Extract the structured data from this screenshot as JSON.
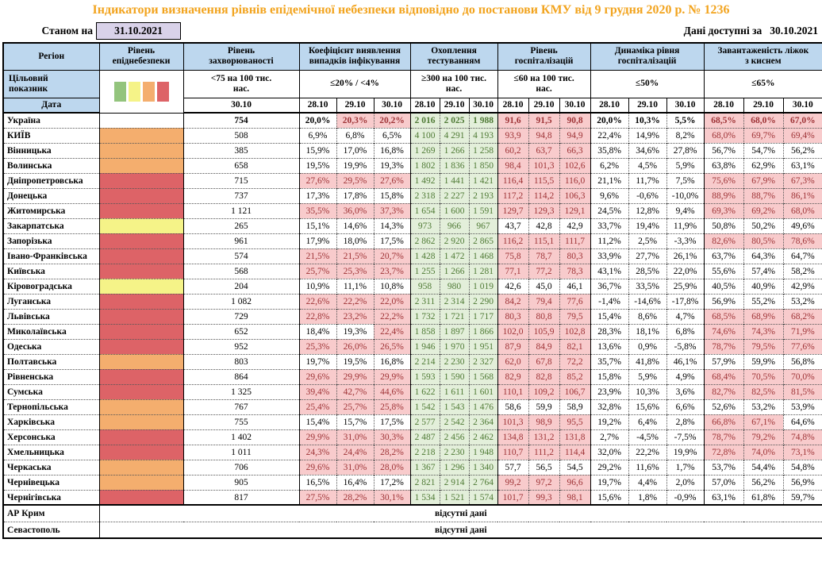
{
  "title": "Індикатори визначення рівнів епідемічної небезпеки відповідно до постанови КМУ від 9 грудня 2020 р. № 1236",
  "as_of_label": "Станом на",
  "as_of_date": "31.10.2021",
  "avail_label": "Дані доступні за",
  "avail_date": "30.10.2021",
  "colors": {
    "title_orange": "#F2A41F",
    "header_blue": "#BDD7EE",
    "asof_lavender": "#D9D2E9",
    "level_orange": "#F4AE6E",
    "level_red": "#DD6367",
    "level_yellow": "#F5F388",
    "bad_bg": "#F8CBCC",
    "bad_text": "#9E3336",
    "good_bg": "#E3EFDA",
    "good_text": "#4F7A35"
  },
  "legend_colors": [
    "#93C47D",
    "#F5F388",
    "#F4AE6E",
    "#DD6367"
  ],
  "header": {
    "region": "Регіон",
    "target_label": "Цільовий\nпоказник",
    "date_label": "Дата",
    "groups": [
      {
        "label": "Рівень\nепіднебезпеки",
        "target": "",
        "dates": []
      },
      {
        "label": "Рівень\nзахворюваності",
        "target": "<75 на 100 тис.\nнас.",
        "dates": [
          "30.10"
        ]
      },
      {
        "label": "Коефіцієнт виявлення\nвипадків інфікування",
        "target": "≤20% / <4%",
        "dates": [
          "28.10",
          "29.10",
          "30.10"
        ]
      },
      {
        "label": "Охоплення\nтестуванням",
        "target": "≥300 на 100 тис.\nнас.",
        "dates": [
          "28.10",
          "29.10",
          "30.10"
        ]
      },
      {
        "label": "Рівень\nгоспіталізацій",
        "target": "≤60 на 100 тис.\nнас.",
        "dates": [
          "28.10",
          "29.10",
          "30.10"
        ]
      },
      {
        "label": "Динаміка рівня\nгоспіталізацій",
        "target": "≤50%",
        "dates": [
          "28.10",
          "29.10",
          "30.10"
        ]
      },
      {
        "label": "Завантаженість ліжок\nз киснем",
        "target": "≤65%",
        "dates": [
          "28.10",
          "29.10",
          "30.10"
        ]
      }
    ]
  },
  "rows": [
    {
      "region": "Україна",
      "level": "none",
      "bold": true,
      "morbidity": "754",
      "coef": [
        "20,0%",
        "20,3%",
        "20,2%"
      ],
      "coef_f": "wpp",
      "test": [
        "2 016",
        "2 025",
        "1 988"
      ],
      "hosp": [
        "91,6",
        "91,5",
        "90,8"
      ],
      "hosp_f": "ppp",
      "dyn": [
        "20,0%",
        "10,3%",
        "5,5%"
      ],
      "beds": [
        "68,5%",
        "68,0%",
        "67,0%"
      ],
      "beds_f": "ppp"
    },
    {
      "region": "КИЇВ",
      "level": "orange",
      "morbidity": "508",
      "coef": [
        "6,9%",
        "6,8%",
        "6,5%"
      ],
      "coef_f": "www",
      "test": [
        "4 100",
        "4 291",
        "4 193"
      ],
      "hosp": [
        "93,9",
        "94,8",
        "94,9"
      ],
      "hosp_f": "ppp",
      "dyn": [
        "22,4%",
        "14,9%",
        "8,2%"
      ],
      "beds": [
        "68,0%",
        "69,7%",
        "69,4%"
      ],
      "beds_f": "ppp"
    },
    {
      "region": "Вінницька",
      "level": "orange",
      "morbidity": "385",
      "coef": [
        "15,9%",
        "17,0%",
        "16,8%"
      ],
      "coef_f": "www",
      "test": [
        "1 269",
        "1 266",
        "1 258"
      ],
      "hosp": [
        "60,2",
        "63,7",
        "66,3"
      ],
      "hosp_f": "ppp",
      "dyn": [
        "35,8%",
        "34,6%",
        "27,8%"
      ],
      "beds": [
        "56,7%",
        "54,7%",
        "56,2%"
      ],
      "beds_f": "www"
    },
    {
      "region": "Волинська",
      "level": "orange",
      "morbidity": "658",
      "coef": [
        "19,5%",
        "19,9%",
        "19,3%"
      ],
      "coef_f": "www",
      "test": [
        "1 802",
        "1 836",
        "1 850"
      ],
      "hosp": [
        "98,4",
        "101,3",
        "102,6"
      ],
      "hosp_f": "ppp",
      "dyn": [
        "6,2%",
        "4,5%",
        "5,9%"
      ],
      "beds": [
        "63,8%",
        "62,9%",
        "63,1%"
      ],
      "beds_f": "www"
    },
    {
      "region": "Дніпропетровська",
      "level": "red",
      "morbidity": "715",
      "coef": [
        "27,6%",
        "29,5%",
        "27,6%"
      ],
      "coef_f": "ppp",
      "test": [
        "1 492",
        "1 441",
        "1 421"
      ],
      "hosp": [
        "116,4",
        "115,5",
        "116,0"
      ],
      "hosp_f": "ppp",
      "dyn": [
        "21,1%",
        "11,7%",
        "7,5%"
      ],
      "beds": [
        "75,6%",
        "67,9%",
        "67,3%"
      ],
      "beds_f": "ppp"
    },
    {
      "region": "Донецька",
      "level": "red",
      "morbidity": "737",
      "coef": [
        "17,3%",
        "17,8%",
        "15,8%"
      ],
      "coef_f": "www",
      "test": [
        "2 318",
        "2 227",
        "2 193"
      ],
      "hosp": [
        "117,2",
        "114,2",
        "106,3"
      ],
      "hosp_f": "ppp",
      "dyn": [
        "9,6%",
        "-0,6%",
        "-10,0%"
      ],
      "beds": [
        "88,9%",
        "88,7%",
        "86,1%"
      ],
      "beds_f": "ppp"
    },
    {
      "region": "Житомирська",
      "level": "red",
      "morbidity": "1 121",
      "coef": [
        "35,5%",
        "36,0%",
        "37,3%"
      ],
      "coef_f": "ppp",
      "test": [
        "1 654",
        "1 600",
        "1 591"
      ],
      "hosp": [
        "129,7",
        "129,3",
        "129,1"
      ],
      "hosp_f": "ppp",
      "dyn": [
        "24,5%",
        "12,8%",
        "9,4%"
      ],
      "beds": [
        "69,3%",
        "69,2%",
        "68,0%"
      ],
      "beds_f": "ppp"
    },
    {
      "region": "Закарпатська",
      "level": "yellow",
      "morbidity": "265",
      "coef": [
        "15,1%",
        "14,6%",
        "14,3%"
      ],
      "coef_f": "www",
      "test": [
        "973",
        "966",
        "967"
      ],
      "hosp": [
        "43,7",
        "42,8",
        "42,9"
      ],
      "hosp_f": "www",
      "dyn": [
        "33,7%",
        "19,4%",
        "11,9%"
      ],
      "beds": [
        "50,8%",
        "50,2%",
        "49,6%"
      ],
      "beds_f": "www"
    },
    {
      "region": "Запорізька",
      "level": "red",
      "morbidity": "961",
      "coef": [
        "17,9%",
        "18,0%",
        "17,5%"
      ],
      "coef_f": "www",
      "test": [
        "2 862",
        "2 920",
        "2 865"
      ],
      "hosp": [
        "116,2",
        "115,1",
        "111,7"
      ],
      "hosp_f": "ppp",
      "dyn": [
        "11,2%",
        "2,5%",
        "-3,3%"
      ],
      "beds": [
        "82,6%",
        "80,5%",
        "78,6%"
      ],
      "beds_f": "ppp"
    },
    {
      "region": "Івано-Франківська",
      "level": "red",
      "morbidity": "574",
      "coef": [
        "21,5%",
        "21,5%",
        "20,7%"
      ],
      "coef_f": "ppp",
      "test": [
        "1 428",
        "1 472",
        "1 468"
      ],
      "hosp": [
        "75,8",
        "78,7",
        "80,3"
      ],
      "hosp_f": "ppp",
      "dyn": [
        "33,9%",
        "27,7%",
        "26,1%"
      ],
      "beds": [
        "63,7%",
        "64,3%",
        "64,7%"
      ],
      "beds_f": "www"
    },
    {
      "region": "Київська",
      "level": "red",
      "morbidity": "568",
      "coef": [
        "25,7%",
        "25,3%",
        "23,7%"
      ],
      "coef_f": "ppp",
      "test": [
        "1 255",
        "1 266",
        "1 281"
      ],
      "hosp": [
        "77,1",
        "77,2",
        "78,3"
      ],
      "hosp_f": "ppp",
      "dyn": [
        "43,1%",
        "28,5%",
        "22,0%"
      ],
      "beds": [
        "55,6%",
        "57,4%",
        "58,2%"
      ],
      "beds_f": "www"
    },
    {
      "region": "Кіровоградська",
      "level": "yellow",
      "morbidity": "204",
      "coef": [
        "10,9%",
        "11,1%",
        "10,8%"
      ],
      "coef_f": "www",
      "test": [
        "958",
        "980",
        "1 019"
      ],
      "hosp": [
        "42,6",
        "45,0",
        "46,1"
      ],
      "hosp_f": "www",
      "dyn": [
        "36,7%",
        "33,5%",
        "25,9%"
      ],
      "beds": [
        "40,5%",
        "40,9%",
        "42,9%"
      ],
      "beds_f": "www"
    },
    {
      "region": "Луганська",
      "level": "red",
      "morbidity": "1 082",
      "coef": [
        "22,6%",
        "22,2%",
        "22,0%"
      ],
      "coef_f": "ppp",
      "test": [
        "2 311",
        "2 314",
        "2 290"
      ],
      "hosp": [
        "84,2",
        "79,4",
        "77,6"
      ],
      "hosp_f": "ppp",
      "dyn": [
        "-1,4%",
        "-14,6%",
        "-17,8%"
      ],
      "beds": [
        "56,9%",
        "55,2%",
        "53,2%"
      ],
      "beds_f": "www"
    },
    {
      "region": "Львівська",
      "level": "red",
      "morbidity": "729",
      "coef": [
        "22,8%",
        "23,2%",
        "22,2%"
      ],
      "coef_f": "ppp",
      "test": [
        "1 732",
        "1 721",
        "1 717"
      ],
      "hosp": [
        "80,3",
        "80,8",
        "79,5"
      ],
      "hosp_f": "ppp",
      "dyn": [
        "15,4%",
        "8,6%",
        "4,7%"
      ],
      "beds": [
        "68,5%",
        "68,9%",
        "68,2%"
      ],
      "beds_f": "ppp"
    },
    {
      "region": "Миколаївська",
      "level": "red",
      "morbidity": "652",
      "coef": [
        "18,4%",
        "19,3%",
        "22,4%"
      ],
      "coef_f": "wwp",
      "test": [
        "1 858",
        "1 897",
        "1 866"
      ],
      "hosp": [
        "102,0",
        "105,9",
        "102,8"
      ],
      "hosp_f": "ppp",
      "dyn": [
        "28,3%",
        "18,1%",
        "6,8%"
      ],
      "beds": [
        "74,6%",
        "74,3%",
        "71,9%"
      ],
      "beds_f": "ppp"
    },
    {
      "region": "Одеська",
      "level": "red",
      "morbidity": "952",
      "coef": [
        "25,3%",
        "26,0%",
        "26,5%"
      ],
      "coef_f": "ppp",
      "test": [
        "1 946",
        "1 970",
        "1 951"
      ],
      "hosp": [
        "87,9",
        "84,9",
        "82,1"
      ],
      "hosp_f": "ppp",
      "dyn": [
        "13,6%",
        "0,9%",
        "-5,8%"
      ],
      "beds": [
        "78,7%",
        "79,5%",
        "77,6%"
      ],
      "beds_f": "ppp"
    },
    {
      "region": "Полтавська",
      "level": "orange",
      "morbidity": "803",
      "coef": [
        "19,7%",
        "19,5%",
        "16,8%"
      ],
      "coef_f": "www",
      "test": [
        "2 214",
        "2 230",
        "2 327"
      ],
      "hosp": [
        "62,0",
        "67,8",
        "72,2"
      ],
      "hosp_f": "ppp",
      "dyn": [
        "35,7%",
        "41,8%",
        "46,1%"
      ],
      "beds": [
        "57,9%",
        "59,9%",
        "56,8%"
      ],
      "beds_f": "www"
    },
    {
      "region": "Рівненська",
      "level": "red",
      "morbidity": "864",
      "coef": [
        "29,6%",
        "29,9%",
        "29,9%"
      ],
      "coef_f": "ppp",
      "test": [
        "1 593",
        "1 590",
        "1 568"
      ],
      "hosp": [
        "82,9",
        "82,8",
        "85,2"
      ],
      "hosp_f": "ppp",
      "dyn": [
        "15,8%",
        "5,9%",
        "4,9%"
      ],
      "beds": [
        "68,4%",
        "70,5%",
        "70,0%"
      ],
      "beds_f": "ppp"
    },
    {
      "region": "Сумська",
      "level": "red",
      "morbidity": "1 325",
      "coef": [
        "39,4%",
        "42,7%",
        "44,6%"
      ],
      "coef_f": "ppp",
      "test": [
        "1 622",
        "1 611",
        "1 601"
      ],
      "hosp": [
        "110,1",
        "109,2",
        "106,7"
      ],
      "hosp_f": "ppp",
      "dyn": [
        "23,9%",
        "10,3%",
        "3,6%"
      ],
      "beds": [
        "82,7%",
        "82,5%",
        "81,5%"
      ],
      "beds_f": "ppp"
    },
    {
      "region": "Тернопільська",
      "level": "orange",
      "morbidity": "767",
      "coef": [
        "25,4%",
        "25,7%",
        "25,8%"
      ],
      "coef_f": "ppp",
      "test": [
        "1 542",
        "1 543",
        "1 476"
      ],
      "hosp": [
        "58,6",
        "59,9",
        "58,9"
      ],
      "hosp_f": "www",
      "dyn": [
        "32,8%",
        "15,6%",
        "6,6%"
      ],
      "beds": [
        "52,6%",
        "53,2%",
        "53,9%"
      ],
      "beds_f": "www"
    },
    {
      "region": "Харківська",
      "level": "orange",
      "morbidity": "755",
      "coef": [
        "15,4%",
        "15,7%",
        "17,5%"
      ],
      "coef_f": "www",
      "test": [
        "2 577",
        "2 542",
        "2 364"
      ],
      "hosp": [
        "101,3",
        "98,9",
        "95,5"
      ],
      "hosp_f": "ppp",
      "dyn": [
        "19,2%",
        "6,4%",
        "2,8%"
      ],
      "beds": [
        "66,8%",
        "67,1%",
        "64,6%"
      ],
      "beds_f": "ppw"
    },
    {
      "region": "Херсонська",
      "level": "red",
      "morbidity": "1 402",
      "coef": [
        "29,9%",
        "31,0%",
        "30,3%"
      ],
      "coef_f": "ppp",
      "test": [
        "2 487",
        "2 456",
        "2 462"
      ],
      "hosp": [
        "134,8",
        "131,2",
        "131,8"
      ],
      "hosp_f": "ppp",
      "dyn": [
        "2,7%",
        "-4,5%",
        "-7,5%"
      ],
      "beds": [
        "78,7%",
        "79,2%",
        "74,8%"
      ],
      "beds_f": "ppp"
    },
    {
      "region": "Хмельницька",
      "level": "red",
      "morbidity": "1 011",
      "coef": [
        "24,3%",
        "24,4%",
        "28,2%"
      ],
      "coef_f": "ppp",
      "test": [
        "2 218",
        "2 230",
        "1 948"
      ],
      "hosp": [
        "110,7",
        "111,2",
        "114,4"
      ],
      "hosp_f": "ppp",
      "dyn": [
        "32,0%",
        "22,2%",
        "19,9%"
      ],
      "beds": [
        "72,8%",
        "74,0%",
        "73,1%"
      ],
      "beds_f": "ppp"
    },
    {
      "region": "Черкаська",
      "level": "orange",
      "morbidity": "706",
      "coef": [
        "29,6%",
        "31,0%",
        "28,0%"
      ],
      "coef_f": "ppp",
      "test": [
        "1 367",
        "1 296",
        "1 340"
      ],
      "hosp": [
        "57,7",
        "56,5",
        "54,5"
      ],
      "hosp_f": "www",
      "dyn": [
        "29,2%",
        "11,6%",
        "1,7%"
      ],
      "beds": [
        "53,7%",
        "54,4%",
        "54,8%"
      ],
      "beds_f": "www"
    },
    {
      "region": "Чернівецька",
      "level": "orange",
      "morbidity": "905",
      "coef": [
        "16,5%",
        "16,4%",
        "17,2%"
      ],
      "coef_f": "www",
      "test": [
        "2 821",
        "2 914",
        "2 764"
      ],
      "hosp": [
        "99,2",
        "97,2",
        "96,6"
      ],
      "hosp_f": "ppp",
      "dyn": [
        "19,7%",
        "4,4%",
        "2,0%"
      ],
      "beds": [
        "57,0%",
        "56,2%",
        "56,9%"
      ],
      "beds_f": "www"
    },
    {
      "region": "Чернігівська",
      "level": "red",
      "morbidity": "817",
      "coef": [
        "27,5%",
        "28,2%",
        "30,1%"
      ],
      "coef_f": "ppp",
      "test": [
        "1 534",
        "1 521",
        "1 574"
      ],
      "hosp": [
        "101,7",
        "99,3",
        "98,1"
      ],
      "hosp_f": "ppp",
      "dyn": [
        "15,6%",
        "1,8%",
        "-0,9%"
      ],
      "beds": [
        "63,1%",
        "61,8%",
        "59,7%"
      ],
      "beds_f": "www"
    }
  ],
  "no_data_rows": [
    {
      "region": "АР Крим",
      "text": "відсутні дані"
    },
    {
      "region": "Севастополь",
      "text": "відсутні дані"
    }
  ]
}
